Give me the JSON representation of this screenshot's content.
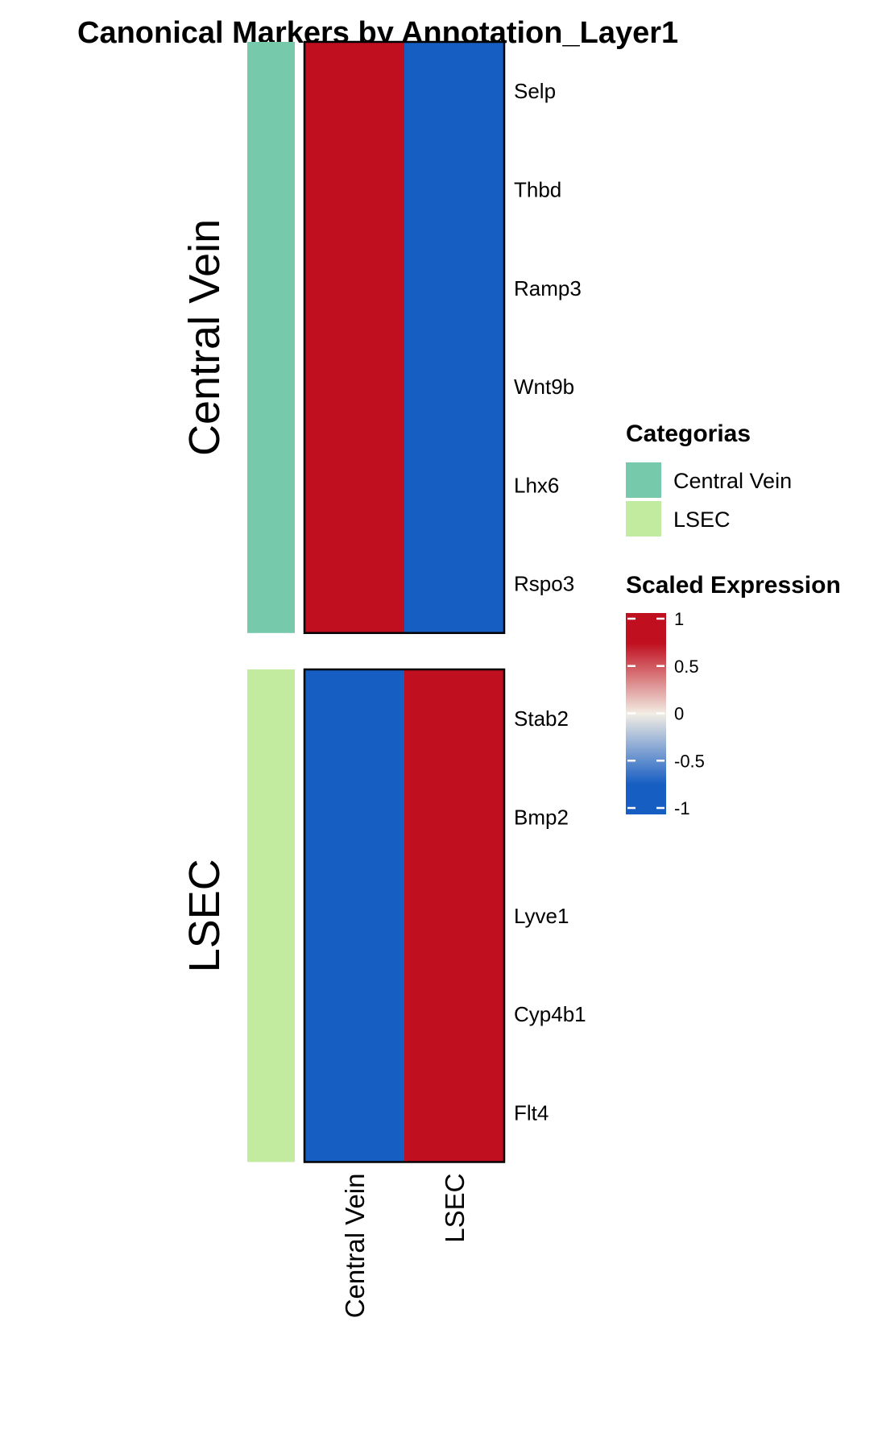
{
  "chart_data": {
    "type": "heatmap",
    "title": "Canonical Markers by Annotation_Layer1",
    "columns": [
      "Central Vein",
      "LSEC"
    ],
    "rows": [
      "Selp",
      "Thbd",
      "Ramp3",
      "Wnt9b",
      "Lhx6",
      "Rspo3",
      "Stab2",
      "Bmp2",
      "Lyve1",
      "Cyp4b1",
      "Flt4"
    ],
    "row_groups": [
      {
        "name": "Central Vein",
        "rows": [
          "Selp",
          "Thbd",
          "Ramp3",
          "Wnt9b",
          "Lhx6",
          "Rspo3"
        ],
        "color": "#76c9ab"
      },
      {
        "name": "LSEC",
        "rows": [
          "Stab2",
          "Bmp2",
          "Lyve1",
          "Cyp4b1",
          "Flt4"
        ],
        "color": "#c2eb9f"
      }
    ],
    "values": [
      [
        1,
        -1
      ],
      [
        1,
        -1
      ],
      [
        1,
        -1
      ],
      [
        1,
        -1
      ],
      [
        1,
        -1
      ],
      [
        1,
        -1
      ],
      [
        -1,
        1
      ],
      [
        -1,
        1
      ],
      [
        -1,
        1
      ],
      [
        -1,
        1
      ],
      [
        -1,
        1
      ]
    ],
    "legends": {
      "categories": {
        "title": "Categorias",
        "items": [
          {
            "label": "Central Vein",
            "color": "#76c9ab"
          },
          {
            "label": "LSEC",
            "color": "#c2eb9f"
          }
        ]
      },
      "scale": {
        "title": "Scaled Expression",
        "ticks": [
          1,
          0.5,
          0,
          -0.5,
          -1
        ],
        "tick_labels": [
          "1",
          "0.5",
          "0",
          "-0.5",
          "-1"
        ],
        "range": [
          -1,
          1
        ],
        "colors": {
          "low": "#175ec3",
          "mid": "#f2ede4",
          "high": "#c0101f"
        }
      }
    }
  }
}
